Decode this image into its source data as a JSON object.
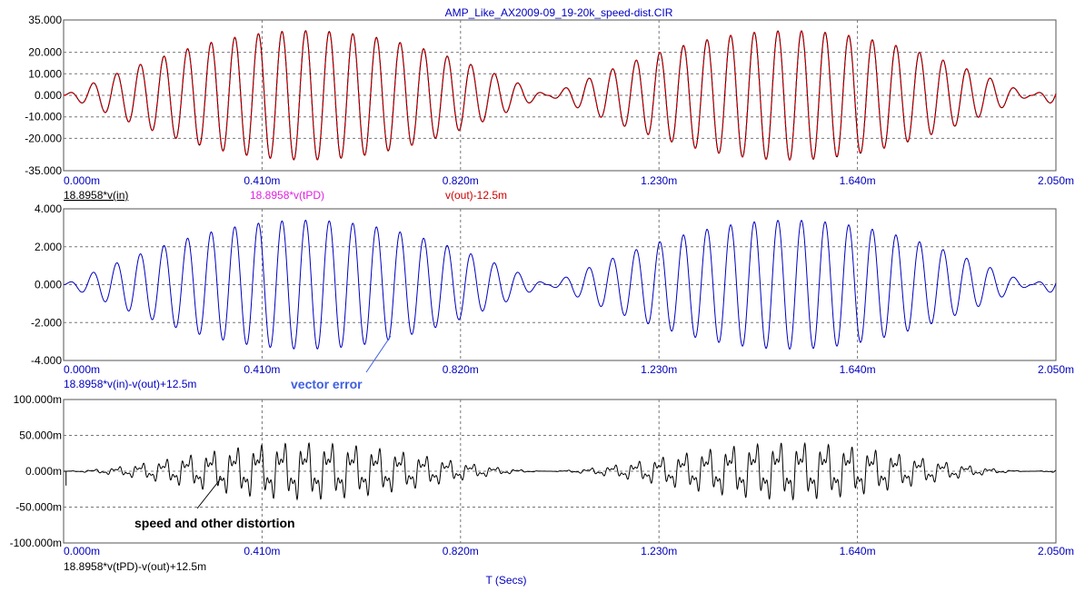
{
  "window": {
    "title": "AMP_Like_AX2009-09_19-20k_speed-dist.CIR"
  },
  "x_axis": {
    "label": "T (Secs)",
    "ticks": [
      "0.000m",
      "0.410m",
      "0.820m",
      "1.230m",
      "1.640m",
      "2.050m"
    ],
    "range_ms": [
      0,
      2.05
    ]
  },
  "colors": {
    "axis_text": "#0000c0",
    "vin": "#000000",
    "vtpd": "#e020e0",
    "vout": "#cc0000",
    "vector_error": "#0000c0",
    "distortion": "#000000",
    "annotation_blue": "#4060e0"
  },
  "chart_data": [
    {
      "type": "line",
      "ylim": [
        -35,
        35
      ],
      "yticks": [
        "35.000",
        "20.000",
        "10.000",
        "0.000",
        "-10.000",
        "-20.000",
        "-35.000"
      ],
      "ytick_values": [
        35,
        20,
        10,
        0,
        -10,
        -20,
        -35
      ],
      "grid": true,
      "legend_placement": "bottom-left",
      "series": [
        {
          "name": "18.8958*v(in)",
          "color": "#000000"
        },
        {
          "name": "18.8958*v(tPD)",
          "color": "#e020e0"
        },
        {
          "name": "v(out)-12.5m",
          "color": "#cc0000"
        }
      ],
      "signal": {
        "carrier_cycles": 41,
        "envelope_peaks_ms": [
          0.5,
          1.5
        ],
        "envelope_nulls_ms": [
          0,
          1.0,
          2.0
        ],
        "peak_amplitude": 30
      }
    },
    {
      "type": "line",
      "ylim": [
        -4,
        4
      ],
      "yticks": [
        "4.000",
        "2.000",
        "0.000",
        "-2.000",
        "-4.000"
      ],
      "ytick_values": [
        4,
        2,
        0,
        -2,
        -4
      ],
      "grid": true,
      "series": [
        {
          "name": "18.8958*v(in)-v(out)+12.5m",
          "color": "#0000c0"
        }
      ],
      "signal": {
        "carrier_cycles": 41,
        "envelope_peaks_ms": [
          0.5,
          1.5
        ],
        "envelope_nulls_ms": [
          0,
          1.0,
          2.0
        ],
        "peak_amplitude": 3.4
      },
      "annotation": "vector error"
    },
    {
      "type": "line",
      "ylim": [
        -100,
        100
      ],
      "yticks": [
        "100.000m",
        "50.000m",
        "0.000m",
        "-50.000m",
        "-100.000m"
      ],
      "ytick_values": [
        100,
        50,
        0,
        -50,
        -100
      ],
      "grid": true,
      "series": [
        {
          "name": "18.8958*v(tPD)-v(out)+12.5m",
          "color": "#000000"
        }
      ],
      "signal": {
        "carrier_cycles": 41,
        "peak_amplitude": 40,
        "initial_spike": -20
      },
      "annotation": "speed and other distortion"
    }
  ]
}
